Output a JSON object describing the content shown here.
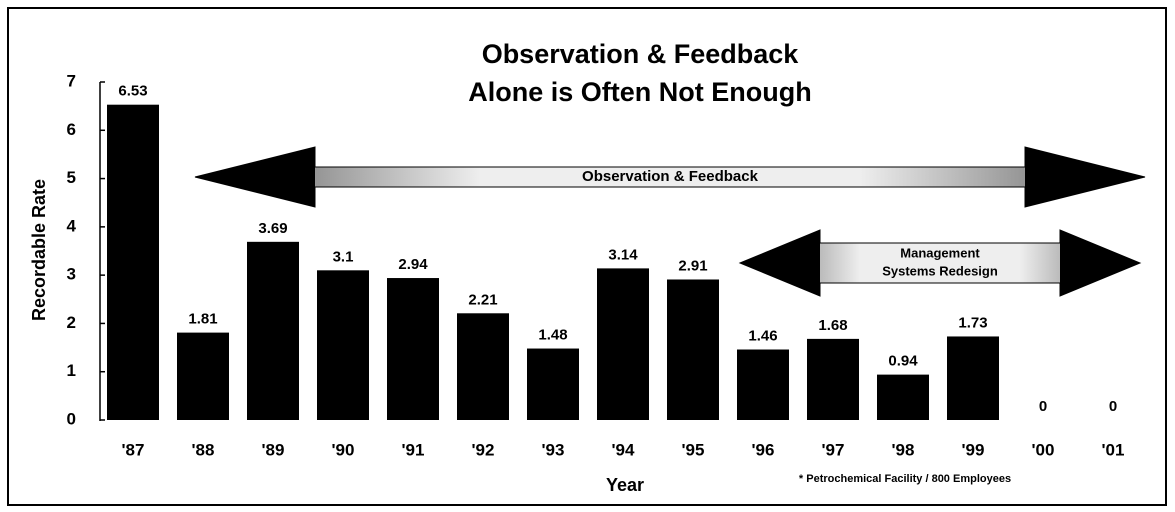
{
  "chart_data": {
    "type": "bar",
    "title": [
      "Observation & Feedback",
      "Alone is Often Not Enough"
    ],
    "x_label": "Year",
    "y_label": "Recordable Rate",
    "categories": [
      "'87",
      "'88",
      "'89",
      "'90",
      "'91",
      "'92",
      "'93",
      "'94",
      "'95",
      "'96",
      "'97",
      "'98",
      "'99",
      "'00",
      "'01"
    ],
    "values": [
      6.53,
      1.81,
      3.69,
      3.1,
      2.94,
      2.21,
      1.48,
      3.14,
      2.91,
      1.46,
      1.68,
      0.94,
      1.73,
      0,
      0
    ],
    "color": "#000000",
    "ylim": [
      0,
      7
    ],
    "yticks": [
      0,
      1,
      2,
      3,
      4,
      5,
      6,
      7
    ],
    "arrows": [
      {
        "label": [
          "Observation & Feedback"
        ]
      },
      {
        "label": [
          "Management",
          "Systems Redesign"
        ]
      }
    ],
    "footnote": "* Petrochemical Facility / 800 Employees"
  }
}
